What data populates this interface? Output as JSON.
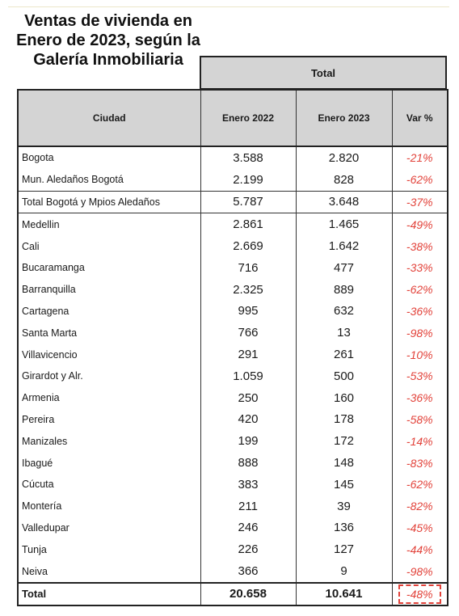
{
  "title": {
    "line1": "Ventas de vivienda en",
    "line2": "Enero de 2023, según la",
    "line3": "Galería Inmobiliaria"
  },
  "table": {
    "group_header": "Total",
    "headers": [
      "Ciudad",
      "Enero 2022",
      "Enero 2023",
      "Var %"
    ],
    "rows": [
      {
        "ciudad": "Bogota",
        "enero_2022": "3.588",
        "enero_2023": "2.820",
        "var": "-21%"
      },
      {
        "ciudad": "Mun. Aledaños Bogotá",
        "enero_2022": "2.199",
        "enero_2023": "828",
        "var": "-62%"
      },
      {
        "ciudad": "Total Bogotá y Mpios Aledaños",
        "enero_2022": "5.787",
        "enero_2023": "3.648",
        "var": "-37%"
      },
      {
        "ciudad": "Medellin",
        "enero_2022": "2.861",
        "enero_2023": "1.465",
        "var": "-49%"
      },
      {
        "ciudad": "Cali",
        "enero_2022": "2.669",
        "enero_2023": "1.642",
        "var": "-38%"
      },
      {
        "ciudad": "Bucaramanga",
        "enero_2022": "716",
        "enero_2023": "477",
        "var": "-33%"
      },
      {
        "ciudad": "Barranquilla",
        "enero_2022": "2.325",
        "enero_2023": "889",
        "var": "-62%"
      },
      {
        "ciudad": "Cartagena",
        "enero_2022": "995",
        "enero_2023": "632",
        "var": "-36%"
      },
      {
        "ciudad": "Santa Marta",
        "enero_2022": "766",
        "enero_2023": "13",
        "var": "-98%"
      },
      {
        "ciudad": "Villavicencio",
        "enero_2022": "291",
        "enero_2023": "261",
        "var": "-10%"
      },
      {
        "ciudad": "Girardot y Alr.",
        "enero_2022": "1.059",
        "enero_2023": "500",
        "var": "-53%"
      },
      {
        "ciudad": "Armenia",
        "enero_2022": "250",
        "enero_2023": "160",
        "var": "-36%"
      },
      {
        "ciudad": "Pereira",
        "enero_2022": "420",
        "enero_2023": "178",
        "var": "-58%"
      },
      {
        "ciudad": "Manizales",
        "enero_2022": "199",
        "enero_2023": "172",
        "var": "-14%"
      },
      {
        "ciudad": "Ibagué",
        "enero_2022": "888",
        "enero_2023": "148",
        "var": "-83%"
      },
      {
        "ciudad": "Cúcuta",
        "enero_2022": "383",
        "enero_2023": "145",
        "var": "-62%"
      },
      {
        "ciudad": "Montería",
        "enero_2022": "211",
        "enero_2023": "39",
        "var": "-82%"
      },
      {
        "ciudad": "Valledupar",
        "enero_2022": "246",
        "enero_2023": "136",
        "var": "-45%"
      },
      {
        "ciudad": "Tunja",
        "enero_2022": "226",
        "enero_2023": "127",
        "var": "-44%"
      },
      {
        "ciudad": "Neiva",
        "enero_2022": "366",
        "enero_2023": "9",
        "var": "-98%"
      }
    ],
    "grand_total": {
      "ciudad": "Total",
      "enero_2022": "20.658",
      "enero_2023": "10.641",
      "var": "-48%"
    }
  },
  "colors": {
    "header_bg": "#d4d4d4",
    "negative_var": "#e2423a",
    "border": "#222222"
  }
}
